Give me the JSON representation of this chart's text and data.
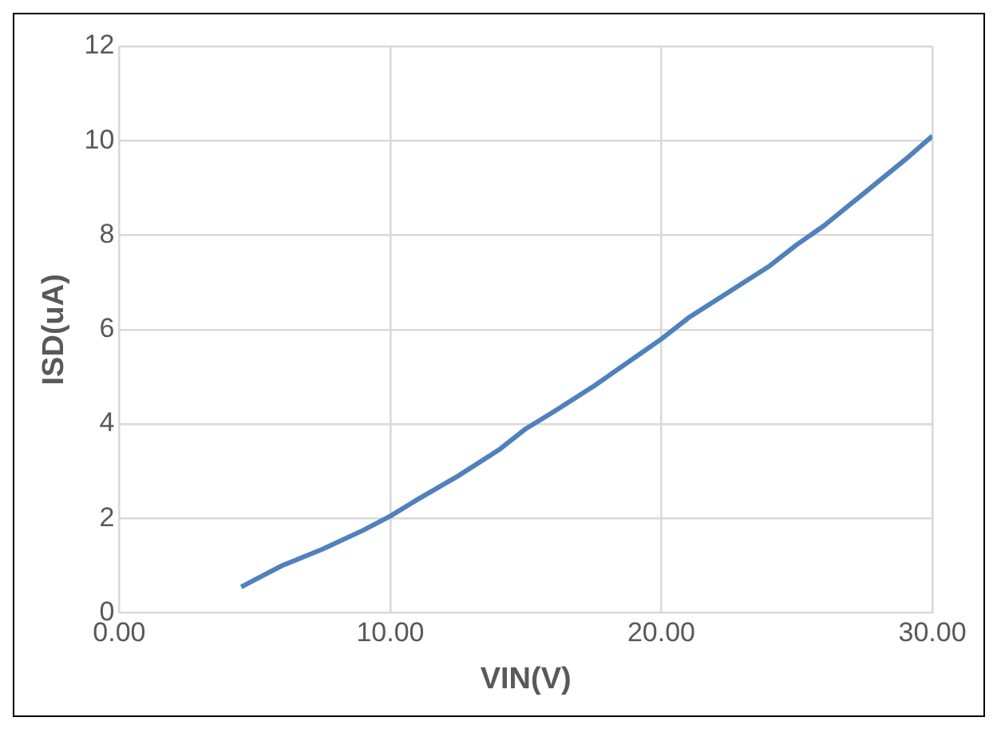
{
  "chart_data": {
    "type": "line",
    "xlabel": "VIN(V)",
    "ylabel": "ISD(uA)",
    "x": [
      4.5,
      5,
      6,
      7.5,
      9,
      10,
      11,
      12.5,
      14,
      15,
      16,
      17.5,
      19,
      20,
      21,
      22.5,
      24,
      25,
      26,
      27.5,
      29,
      30
    ],
    "series": [
      {
        "color": "#4f81bd",
        "values": [
          0.55,
          0.7,
          1.0,
          1.35,
          1.75,
          2.05,
          2.4,
          2.9,
          3.45,
          3.9,
          4.25,
          4.8,
          5.4,
          5.8,
          6.25,
          6.8,
          7.35,
          7.8,
          8.2,
          8.9,
          9.6,
          10.1
        ]
      }
    ],
    "xlim": [
      0,
      30
    ],
    "xticks": [
      {
        "value": 0,
        "label": "0.00"
      },
      {
        "value": 10,
        "label": "10.00"
      },
      {
        "value": 20,
        "label": "20.00"
      },
      {
        "value": 30,
        "label": "30.00"
      }
    ],
    "ylim": [
      0,
      12
    ],
    "yticks": [
      0,
      2,
      4,
      6,
      8,
      10,
      12
    ],
    "grid": true,
    "legend": false,
    "marker": "none",
    "line_style": "solid"
  }
}
